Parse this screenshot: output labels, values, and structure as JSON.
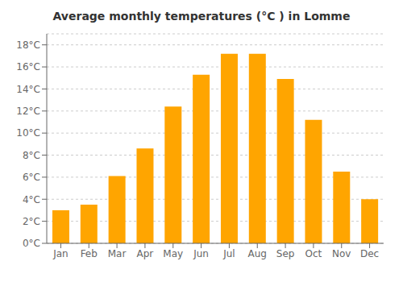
{
  "chart_data": {
    "type": "bar",
    "title": "Average monthly temperatures (°C ) in Lomme",
    "categories": [
      "Jan",
      "Feb",
      "Mar",
      "Apr",
      "May",
      "Jun",
      "Jul",
      "Aug",
      "Sep",
      "Oct",
      "Nov",
      "Dec"
    ],
    "values": [
      3.0,
      3.5,
      6.1,
      8.6,
      12.4,
      15.3,
      17.2,
      17.2,
      14.9,
      11.2,
      6.5,
      4.0
    ],
    "color": "#FFA500",
    "ylim": [
      0,
      19
    ],
    "yticks": [
      {
        "value": 0,
        "label": "0°C"
      },
      {
        "value": 2,
        "label": "2°C"
      },
      {
        "value": 4,
        "label": "4°C"
      },
      {
        "value": 6,
        "label": "6°C"
      },
      {
        "value": 8,
        "label": "8°C"
      },
      {
        "value": 10,
        "label": "10°C"
      },
      {
        "value": 12,
        "label": "12°C"
      },
      {
        "value": 14,
        "label": "14°C"
      },
      {
        "value": 16,
        "label": "16°C"
      },
      {
        "value": 18,
        "label": "18°C"
      }
    ],
    "grid": true
  }
}
